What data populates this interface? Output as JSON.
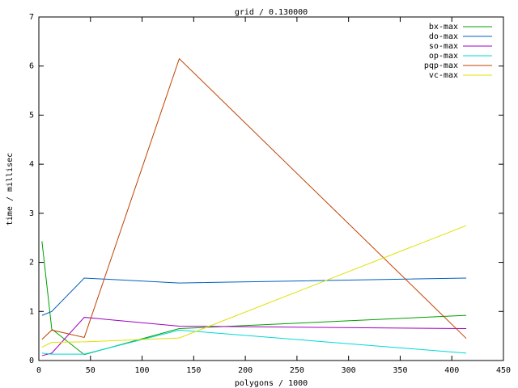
{
  "chart_data": {
    "type": "line",
    "title": "grid / 0.130000",
    "xlabel": "polygons / 1000",
    "ylabel": "time / millisec",
    "x": [
      3,
      12.5,
      44,
      136,
      414
    ],
    "series": [
      {
        "name": "bx-max",
        "color": "#00a000",
        "values": [
          2.43,
          0.64,
          0.12,
          0.65,
          0.92
        ]
      },
      {
        "name": "do-max",
        "color": "#0060c0",
        "values": [
          0.92,
          1.0,
          1.68,
          1.58,
          1.68
        ]
      },
      {
        "name": "so-max",
        "color": "#a000c0",
        "values": [
          0.1,
          0.15,
          0.88,
          0.7,
          0.65
        ]
      },
      {
        "name": "op-max",
        "color": "#00d8d8",
        "values": [
          0.15,
          0.13,
          0.13,
          0.62,
          0.15
        ]
      },
      {
        "name": "pqp-max",
        "color": "#c04000",
        "values": [
          0.43,
          0.62,
          0.47,
          6.15,
          0.45
        ]
      },
      {
        "name": "vc-max",
        "color": "#e0e000",
        "values": [
          0.27,
          0.37,
          0.38,
          0.46,
          2.75
        ]
      }
    ],
    "xlim": [
      0,
      450
    ],
    "xticks": [
      0,
      50,
      100,
      150,
      200,
      250,
      300,
      350,
      400,
      450
    ],
    "ylim": [
      0,
      7
    ],
    "yticks": [
      0,
      1,
      2,
      3,
      4,
      5,
      6,
      7
    ],
    "legend": "top-right"
  }
}
